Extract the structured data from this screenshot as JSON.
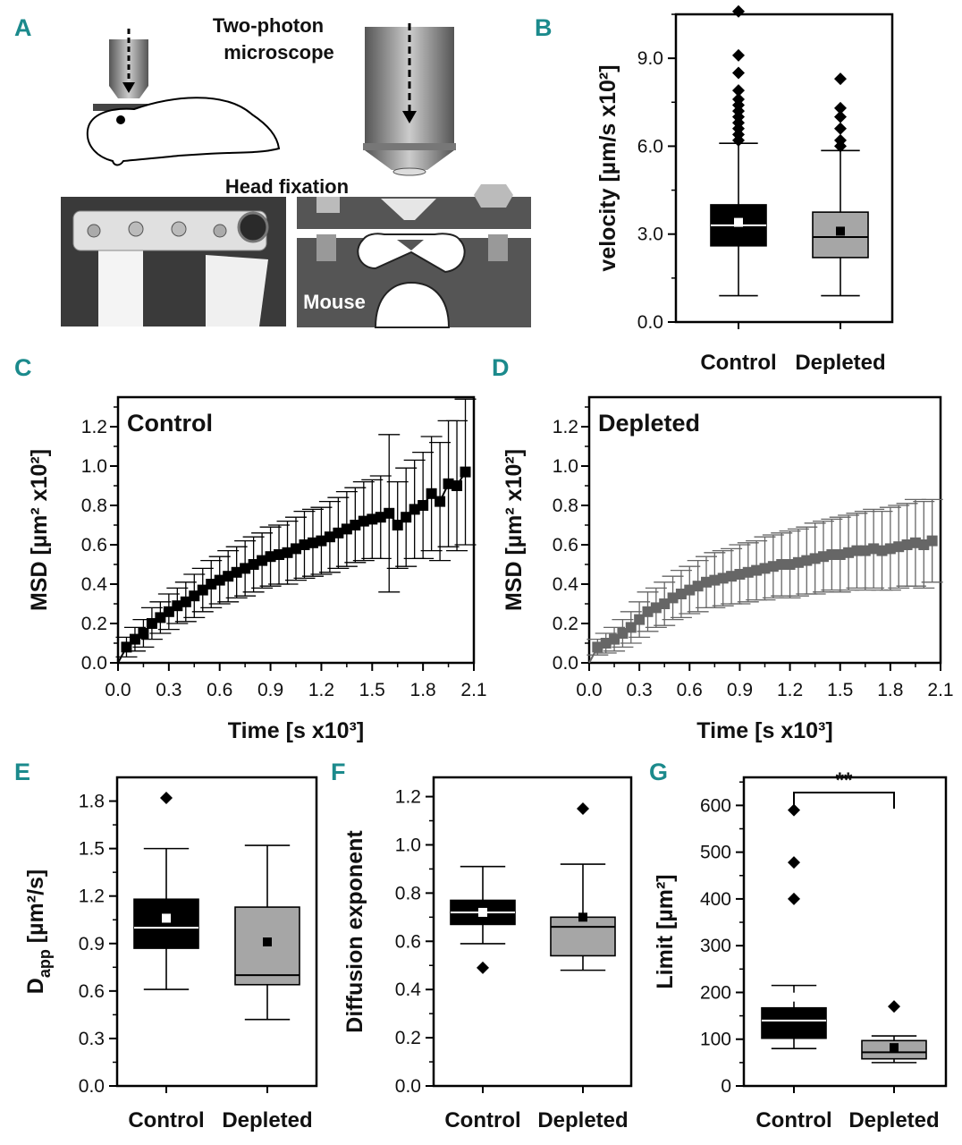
{
  "panel_labels": {
    "a": "A",
    "b": "B",
    "c": "C",
    "d": "D",
    "e": "E",
    "f": "F",
    "g": "G"
  },
  "schematic": {
    "title_line1": "Two-photon",
    "title_line2": "microscope",
    "head_fixation": "Head fixation",
    "mouse": "Mouse"
  },
  "colors": {
    "control": "#000000",
    "depleted": "#a6a6a6",
    "depleted_series": "#666666",
    "label": "#1b8a8c"
  },
  "chart_data": [
    {
      "id": "B",
      "type": "box",
      "ylabel": "velocity [µm/s x10²]",
      "ylim": [
        0,
        10.5
      ],
      "ticks": [
        0.0,
        3.0,
        6.0,
        9.0
      ],
      "tick_labels": [
        "0.0",
        "3.0",
        "6.0",
        "9.0"
      ],
      "categories": [
        "Control",
        "Depleted"
      ],
      "boxes": [
        {
          "name": "Control",
          "q1": 2.6,
          "median": 3.3,
          "q3": 4.0,
          "whisker_low": 0.9,
          "whisker_high": 6.1,
          "mean": 3.4,
          "outliers": [
            6.2,
            6.4,
            6.6,
            6.8,
            7.0,
            7.2,
            7.4,
            7.6,
            7.9,
            8.5,
            9.1,
            10.6
          ]
        },
        {
          "name": "Depleted",
          "q1": 2.2,
          "median": 2.9,
          "q3": 3.75,
          "whisker_low": 0.9,
          "whisker_high": 5.85,
          "mean": 3.1,
          "outliers": [
            6.0,
            6.2,
            6.6,
            7.0,
            7.3,
            8.3
          ]
        }
      ]
    },
    {
      "id": "C",
      "type": "line",
      "inset": "Control",
      "xlabel": "Time [s x10³]",
      "ylabel": "MSD [µm² x10²]",
      "xlim": [
        0,
        2.1
      ],
      "ylim": [
        0,
        1.35
      ],
      "xticks": [
        "0.0",
        "0.3",
        "0.6",
        "0.9",
        "1.2",
        "1.5",
        "1.8",
        "2.1"
      ],
      "yticks": [
        "0.0",
        "0.2",
        "0.4",
        "0.6",
        "0.8",
        "1.0",
        "1.2"
      ],
      "x": [
        0.05,
        0.1,
        0.15,
        0.2,
        0.25,
        0.3,
        0.35,
        0.4,
        0.45,
        0.5,
        0.55,
        0.6,
        0.65,
        0.7,
        0.75,
        0.8,
        0.85,
        0.9,
        0.95,
        1.0,
        1.05,
        1.1,
        1.15,
        1.2,
        1.25,
        1.3,
        1.35,
        1.4,
        1.45,
        1.5,
        1.55,
        1.6,
        1.65,
        1.7,
        1.75,
        1.8,
        1.85,
        1.9,
        1.95,
        2.0,
        2.05
      ],
      "y": [
        0.08,
        0.12,
        0.15,
        0.2,
        0.23,
        0.26,
        0.29,
        0.31,
        0.34,
        0.37,
        0.4,
        0.42,
        0.44,
        0.46,
        0.48,
        0.5,
        0.52,
        0.54,
        0.55,
        0.56,
        0.58,
        0.6,
        0.61,
        0.62,
        0.64,
        0.66,
        0.68,
        0.7,
        0.72,
        0.73,
        0.74,
        0.76,
        0.7,
        0.74,
        0.78,
        0.8,
        0.86,
        0.82,
        0.91,
        0.9,
        0.97
      ],
      "error": [
        0.05,
        0.06,
        0.07,
        0.08,
        0.08,
        0.09,
        0.09,
        0.1,
        0.11,
        0.11,
        0.12,
        0.12,
        0.13,
        0.13,
        0.14,
        0.14,
        0.14,
        0.15,
        0.15,
        0.16,
        0.16,
        0.17,
        0.17,
        0.17,
        0.18,
        0.18,
        0.19,
        0.19,
        0.2,
        0.2,
        0.21,
        0.4,
        0.22,
        0.25,
        0.25,
        0.27,
        0.29,
        0.3,
        0.32,
        0.33,
        0.37
      ]
    },
    {
      "id": "D",
      "type": "line",
      "inset": "Depleted",
      "xlabel": "Time [s x10³]",
      "ylabel": "MSD [µm² x10²]",
      "xlim": [
        0,
        2.1
      ],
      "ylim": [
        0,
        1.35
      ],
      "xticks": [
        "0.0",
        "0.3",
        "0.6",
        "0.9",
        "1.2",
        "1.5",
        "1.8",
        "2.1"
      ],
      "yticks": [
        "0.0",
        "0.2",
        "0.4",
        "0.6",
        "0.8",
        "1.0",
        "1.2"
      ],
      "x": [
        0.05,
        0.1,
        0.15,
        0.2,
        0.25,
        0.3,
        0.35,
        0.4,
        0.45,
        0.5,
        0.55,
        0.6,
        0.65,
        0.7,
        0.75,
        0.8,
        0.85,
        0.9,
        0.95,
        1.0,
        1.05,
        1.1,
        1.15,
        1.2,
        1.25,
        1.3,
        1.35,
        1.4,
        1.45,
        1.5,
        1.55,
        1.6,
        1.65,
        1.7,
        1.75,
        1.8,
        1.85,
        1.9,
        1.95,
        2.0,
        2.05
      ],
      "y": [
        0.08,
        0.1,
        0.12,
        0.15,
        0.18,
        0.22,
        0.26,
        0.28,
        0.3,
        0.33,
        0.35,
        0.37,
        0.39,
        0.41,
        0.42,
        0.43,
        0.44,
        0.45,
        0.46,
        0.47,
        0.48,
        0.49,
        0.5,
        0.5,
        0.51,
        0.52,
        0.53,
        0.54,
        0.55,
        0.55,
        0.56,
        0.57,
        0.57,
        0.58,
        0.57,
        0.58,
        0.59,
        0.6,
        0.61,
        0.6,
        0.62
      ],
      "error": [
        0.04,
        0.05,
        0.06,
        0.07,
        0.08,
        0.09,
        0.1,
        0.1,
        0.11,
        0.11,
        0.12,
        0.12,
        0.13,
        0.13,
        0.14,
        0.14,
        0.14,
        0.15,
        0.15,
        0.15,
        0.16,
        0.16,
        0.16,
        0.17,
        0.17,
        0.17,
        0.18,
        0.18,
        0.18,
        0.19,
        0.19,
        0.19,
        0.2,
        0.2,
        0.2,
        0.21,
        0.21,
        0.21,
        0.22,
        0.22,
        0.21
      ]
    },
    {
      "id": "E",
      "type": "box",
      "ylabel_main": "D",
      "ylabel_sub": "app",
      "ylabel_rest": " [µm²/s]",
      "ylim": [
        0,
        1.95
      ],
      "ticks": [
        0.0,
        0.3,
        0.6,
        0.9,
        1.2,
        1.5,
        1.8
      ],
      "tick_labels": [
        "0.0",
        "0.3",
        "0.6",
        "0.9",
        "1.2",
        "1.5",
        "1.8"
      ],
      "categories": [
        "Control",
        "Depleted"
      ],
      "boxes": [
        {
          "name": "Control",
          "q1": 0.87,
          "median": 1.0,
          "q3": 1.18,
          "whisker_low": 0.61,
          "whisker_high": 1.5,
          "mean": 1.06,
          "outliers": [
            1.82
          ]
        },
        {
          "name": "Depleted",
          "q1": 0.64,
          "median": 0.7,
          "q3": 1.13,
          "whisker_low": 0.42,
          "whisker_high": 1.52,
          "mean": 0.91,
          "outliers": []
        }
      ]
    },
    {
      "id": "F",
      "type": "box",
      "ylabel": "Diffusion exponent",
      "ylim": [
        0,
        1.28
      ],
      "ticks": [
        0.0,
        0.2,
        0.4,
        0.6,
        0.8,
        1.0,
        1.2
      ],
      "tick_labels": [
        "0.0",
        "0.2",
        "0.4",
        "0.6",
        "0.8",
        "1.0",
        "1.2"
      ],
      "categories": [
        "Control",
        "Depleted"
      ],
      "boxes": [
        {
          "name": "Control",
          "q1": 0.67,
          "median": 0.72,
          "q3": 0.77,
          "whisker_low": 0.59,
          "whisker_high": 0.91,
          "mean": 0.72,
          "outliers": [
            0.49
          ]
        },
        {
          "name": "Depleted",
          "q1": 0.54,
          "median": 0.66,
          "q3": 0.7,
          "whisker_low": 0.48,
          "whisker_high": 0.92,
          "mean": 0.7,
          "outliers": [
            1.15
          ]
        }
      ]
    },
    {
      "id": "G",
      "type": "box",
      "ylabel": "Limit [µm²]",
      "ylim": [
        0,
        660
      ],
      "ticks": [
        0,
        100,
        200,
        300,
        400,
        500,
        600
      ],
      "tick_labels": [
        "0",
        "100",
        "200",
        "300",
        "400",
        "500",
        "600"
      ],
      "categories": [
        "Control",
        "Depleted"
      ],
      "significance": "**",
      "boxes": [
        {
          "name": "Control",
          "q1": 102,
          "median": 140,
          "q3": 167,
          "whisker_low": 80,
          "whisker_high": 215,
          "mean": 190,
          "outliers": [
            400,
            478,
            590
          ]
        },
        {
          "name": "Depleted",
          "q1": 58,
          "median": 72,
          "q3": 97,
          "whisker_low": 50,
          "whisker_high": 107,
          "mean": 82,
          "outliers": [
            170
          ]
        }
      ]
    }
  ]
}
